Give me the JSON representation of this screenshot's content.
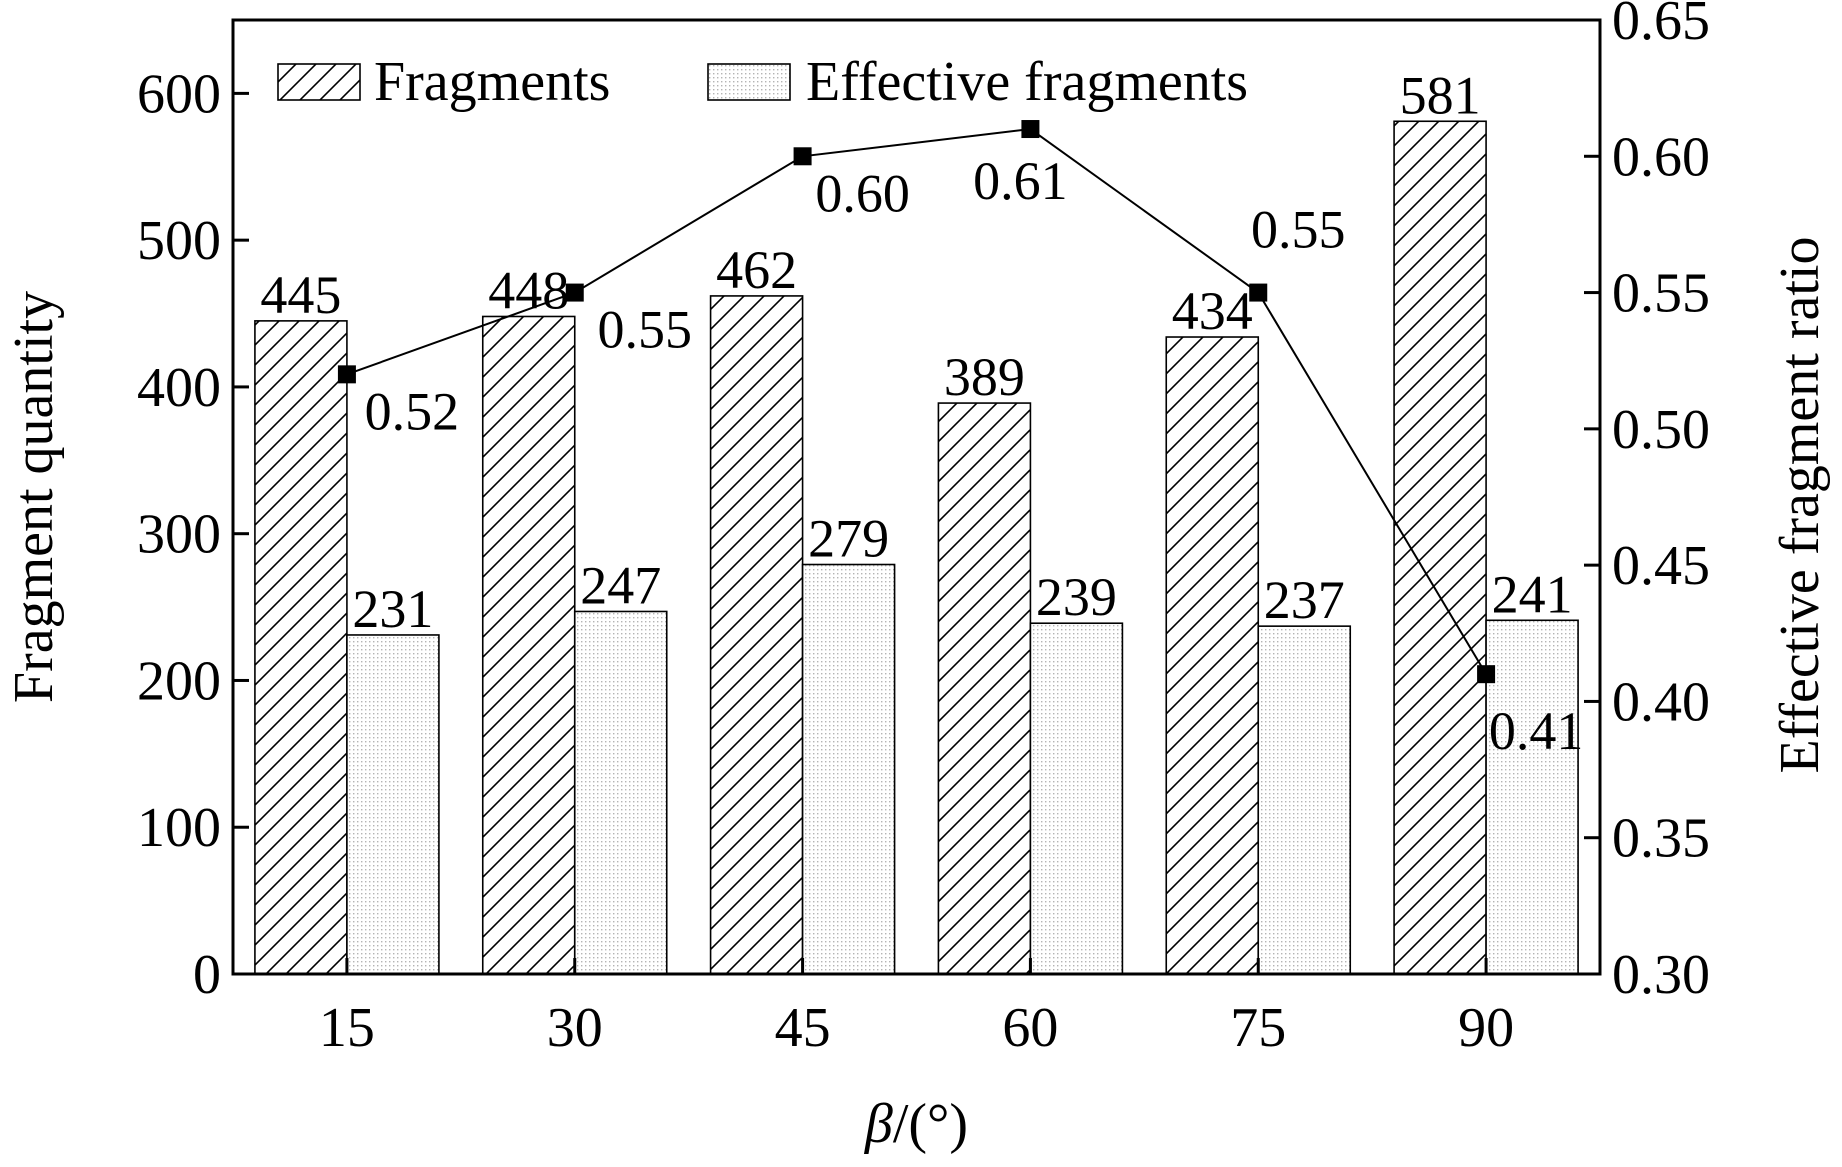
{
  "chart_data": {
    "type": "bar",
    "categories": [
      "15",
      "30",
      "45",
      "60",
      "75",
      "90"
    ],
    "series": [
      {
        "name": "Fragments",
        "axis": "left",
        "kind": "bar",
        "pattern": "diagonal-hatch",
        "values": [
          445,
          448,
          462,
          389,
          434,
          581
        ],
        "labels": [
          "445",
          "448",
          "462",
          "389",
          "434",
          "581"
        ]
      },
      {
        "name": "Effective fragments",
        "axis": "left",
        "kind": "bar",
        "pattern": "fine-dots",
        "values": [
          231,
          247,
          279,
          239,
          237,
          241
        ],
        "labels": [
          "231",
          "247",
          "279",
          "239",
          "237",
          "241"
        ]
      },
      {
        "axis": "right",
        "kind": "line-with-square-markers",
        "values": [
          0.52,
          0.55,
          0.6,
          0.61,
          0.55,
          0.41
        ],
        "labels": [
          "0.52",
          "0.55",
          "0.60",
          "0.61",
          "0.55",
          "0.41"
        ]
      }
    ],
    "xlabel_prefix": "β",
    "xlabel_suffix": "/(°)",
    "ylabel": "Fragment quantity",
    "y2label": "Effective fragment ratio",
    "ylim": [
      0,
      650
    ],
    "yticks": [
      "0",
      "100",
      "200",
      "300",
      "400",
      "500",
      "600"
    ],
    "y2lim": [
      0.3,
      0.65
    ],
    "y2ticks": [
      "0.30",
      "0.35",
      "0.40",
      "0.45",
      "0.50",
      "0.55",
      "0.60",
      "0.65"
    ],
    "legend": [
      "Fragments",
      "Effective fragments"
    ],
    "legend_position": "top-left",
    "grid": false,
    "colors": {
      "axis": "#000000",
      "bar_fill": "#ffffff",
      "dots": "#b4b4b4",
      "line": "#000000",
      "marker": "#000000"
    }
  }
}
